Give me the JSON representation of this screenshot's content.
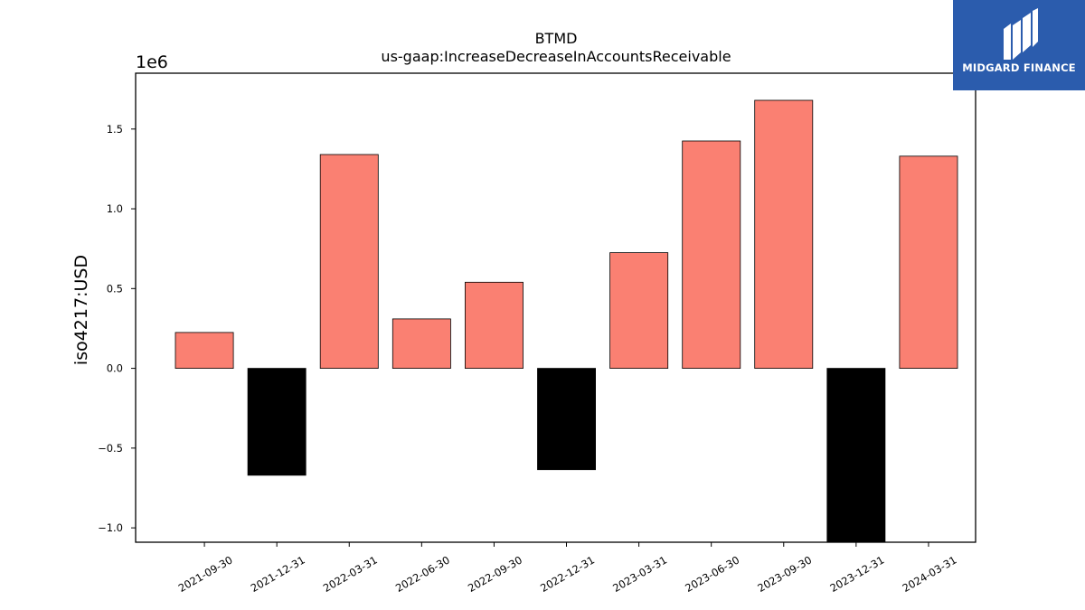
{
  "brand": {
    "name": "MIDGARD FINANCE",
    "bg_color": "#2b5cad",
    "icon": "midgard-logo-icon"
  },
  "chart_data": {
    "type": "bar",
    "title": "BTMD",
    "subtitle": "us-gaap:IncreaseDecreaseInAccountsReceivable",
    "xlabel": "",
    "ylabel": "iso4217:USD",
    "y_multiplier_label": "1e6",
    "ylim": [
      -1.09,
      1.85
    ],
    "yticks": [
      -1.0,
      -0.5,
      0.0,
      0.5,
      1.0,
      1.5
    ],
    "ytick_labels": [
      "−1.0",
      "−0.5",
      "0.0",
      "0.5",
      "1.0",
      "1.5"
    ],
    "grid": false,
    "legend": "none",
    "positive_color": "#fa8072",
    "negative_color": "#000000",
    "categories": [
      "2021-09-30",
      "2021-12-31",
      "2022-03-31",
      "2022-06-30",
      "2022-09-30",
      "2022-12-31",
      "2023-03-31",
      "2023-06-30",
      "2023-09-30",
      "2023-12-31",
      "2024-03-31"
    ],
    "values": [
      225000,
      -670000,
      1340000,
      310000,
      540000,
      -635000,
      725000,
      1425000,
      1680000,
      -1090000,
      1330000
    ]
  }
}
